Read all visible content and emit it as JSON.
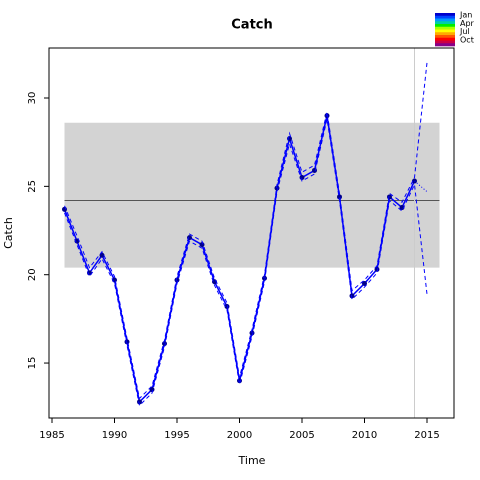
{
  "chart_data": {
    "type": "line",
    "title": "Catch",
    "x_label": "Time",
    "y_label": "Catch",
    "x": [
      1986,
      1987,
      1988,
      1989,
      1990,
      1991,
      1992,
      1993,
      1994,
      1995,
      1996,
      1997,
      1998,
      1999,
      2000,
      2001,
      2002,
      2003,
      2004,
      2005,
      2006,
      2007,
      2008,
      2009,
      2010,
      2011,
      2012,
      2013,
      2014,
      2015
    ],
    "series": [
      {
        "color": "#0000ff",
        "marker_color": "#00008b",
        "dash": "solid",
        "markers": true,
        "values": [
          23.7,
          21.9,
          20.1,
          21.1,
          19.7,
          16.2,
          12.8,
          13.5,
          16.1,
          19.7,
          22.1,
          21.7,
          19.6,
          18.2,
          14.0,
          16.7,
          19.8,
          24.9,
          27.7,
          25.5,
          25.9,
          29.0,
          24.4,
          18.8,
          19.5,
          20.3,
          24.4,
          23.8,
          25.3,
          null
        ]
      },
      {
        "color": "#0000ff",
        "dash": "dashed",
        "markers": false,
        "values": [
          23.9,
          22.2,
          20.4,
          21.3,
          19.9,
          16.4,
          13.0,
          13.7,
          16.3,
          19.9,
          22.3,
          21.9,
          19.8,
          18.4,
          14.2,
          16.9,
          20.0,
          25.1,
          28.0,
          25.8,
          26.2,
          29.2,
          24.6,
          19.1,
          19.7,
          20.5,
          24.6,
          24.1,
          25.5,
          32.0
        ]
      },
      {
        "color": "#0000ff",
        "dash": "dashed",
        "markers": false,
        "values": [
          23.5,
          21.7,
          19.9,
          20.9,
          19.5,
          16.0,
          12.6,
          13.3,
          15.9,
          19.5,
          21.9,
          21.5,
          19.4,
          18.0,
          13.8,
          16.5,
          19.6,
          24.7,
          27.4,
          25.3,
          25.7,
          28.8,
          24.2,
          18.6,
          19.3,
          20.1,
          24.2,
          23.6,
          25.1,
          18.9
        ]
      },
      {
        "color": "#0000ff",
        "dash": "dotted",
        "markers": false,
        "values": [
          null,
          null,
          null,
          null,
          null,
          null,
          null,
          null,
          null,
          null,
          null,
          null,
          null,
          null,
          null,
          null,
          null,
          null,
          null,
          null,
          null,
          null,
          null,
          null,
          null,
          null,
          null,
          null,
          25.3,
          24.7
        ]
      }
    ],
    "band": {
      "xmin": 1986,
      "xmax": 2016,
      "ymin": 20.4,
      "ymax": 28.6,
      "color": "#d3d3d3"
    },
    "mean_line": 24.2,
    "vline": 2014,
    "xlim": [
      1984.76,
      2017.16
    ],
    "ylim": [
      11.89,
      32.83
    ],
    "xticks": [
      1985,
      1990,
      1995,
      2000,
      2005,
      2010,
      2015
    ],
    "yticks": [
      15,
      20,
      25,
      30
    ],
    "color_legend": {
      "labels": [
        "Jan",
        "Apr",
        "Jul",
        "Oct"
      ],
      "colors": [
        "#0000cc",
        "#0044ff",
        "#0099ff",
        "#00ccaa",
        "#00ee00",
        "#aaff00",
        "#ffff00",
        "#ffaa00",
        "#ff5500",
        "#ff0000",
        "#cc0044",
        "#880088"
      ]
    }
  }
}
